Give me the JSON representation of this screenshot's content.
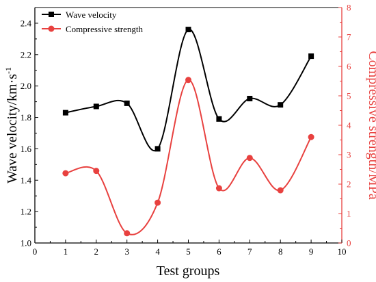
{
  "chart_data": {
    "type": "line",
    "xlabel": "Test groups",
    "ylabel_left": "Wave velocity/km·s",
    "ylabel_left_sup": "-1",
    "ylabel_right": "Compressive strength/MPa",
    "xlim": [
      0,
      10
    ],
    "ylim_left": [
      1.0,
      2.5
    ],
    "ylim_right": [
      0,
      8
    ],
    "x_ticks": [
      0,
      1,
      2,
      3,
      4,
      5,
      6,
      7,
      8,
      9,
      10
    ],
    "y_left_ticks": [
      "1.0",
      "1.2",
      "1.4",
      "1.6",
      "1.8",
      "2.0",
      "2.2",
      "2.4"
    ],
    "y_right_ticks": [
      0,
      1,
      2,
      3,
      4,
      5,
      6,
      7,
      8
    ],
    "grid": false,
    "legend": "top-left",
    "series": [
      {
        "name": "Wave velocity",
        "axis": "left",
        "color": "#000000",
        "marker": "square",
        "x": [
          1,
          2,
          3,
          4,
          5,
          6,
          7,
          8,
          9
        ],
        "values": [
          1.83,
          1.87,
          1.89,
          1.6,
          2.36,
          1.79,
          1.92,
          1.88,
          2.19
        ]
      },
      {
        "name": "Compressive strength",
        "axis": "right",
        "color": "#e8413f",
        "marker": "circle",
        "x": [
          1,
          2,
          3,
          4,
          5,
          6,
          7,
          8,
          9
        ],
        "values": [
          2.37,
          2.45,
          0.33,
          1.37,
          5.54,
          1.86,
          2.89,
          1.79,
          3.6
        ]
      }
    ]
  }
}
